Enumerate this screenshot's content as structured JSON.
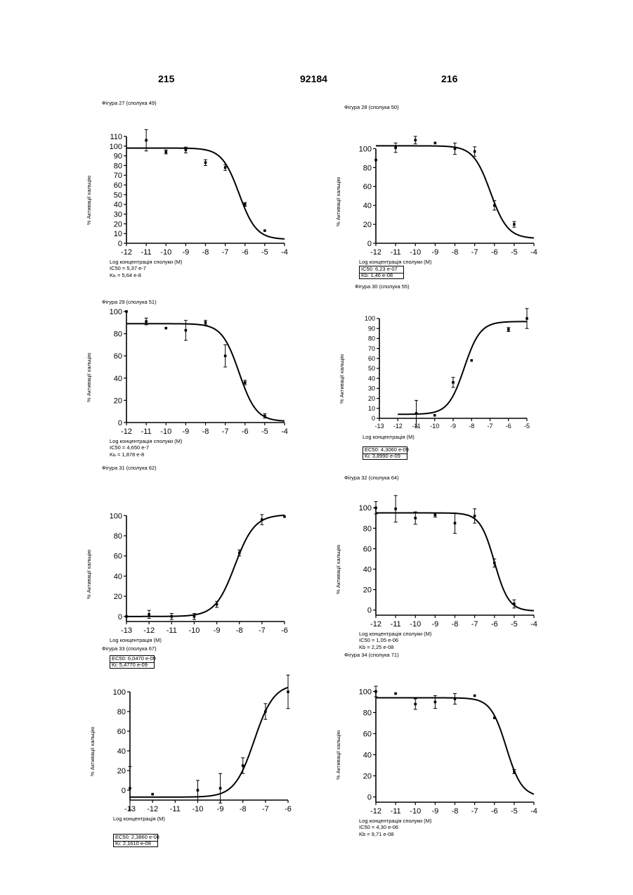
{
  "page": {
    "left_number": "215",
    "center_number": "92184",
    "right_number": "216"
  },
  "chart_data": [
    {
      "type": "scatter",
      "title": "Фігура 27 (сполука 49)",
      "xlabel": "Log концентрація сполуки (M)",
      "ylabel": "% Активації кальцію",
      "xlim": [
        -12,
        -4
      ],
      "ylim": [
        0,
        110
      ],
      "xticks": [
        -12,
        -11,
        -10,
        -9,
        -8,
        -7,
        -6,
        -5,
        -4
      ],
      "yticks": [
        0,
        10,
        20,
        30,
        40,
        50,
        60,
        70,
        80,
        90,
        100,
        110
      ],
      "tick_font": 11,
      "points": [
        {
          "x": -11,
          "y": 106,
          "err": 11
        },
        {
          "x": -10,
          "y": 94,
          "err": 2
        },
        {
          "x": -9,
          "y": 96,
          "err": 3
        },
        {
          "x": -8,
          "y": 83,
          "err": 3
        },
        {
          "x": -7,
          "y": 78,
          "err": 3
        },
        {
          "x": -6,
          "y": 40,
          "err": 2
        },
        {
          "x": -5,
          "y": 13,
          "err": 0
        }
      ],
      "curve": {
        "bottom": 4,
        "top": 98,
        "logEC50": -6.3,
        "hill": -1
      },
      "notes": [
        "IC50 = 5,37 e-7",
        "Kь = 5,64 e-8"
      ],
      "notes_boxed": false
    },
    {
      "type": "scatter",
      "title": "Фігура 28 (сполука 50)",
      "xlabel": "Log концентрація сполуки (M)",
      "ylabel": "% Активації кальцію",
      "xlim": [
        -12,
        -4
      ],
      "ylim": [
        0,
        110
      ],
      "xticks": [
        -12,
        -11,
        -10,
        -9,
        -8,
        -7,
        -6,
        -5,
        -4
      ],
      "yticks": [
        0,
        20,
        40,
        60,
        80,
        100
      ],
      "tick_font": 11,
      "points": [
        {
          "x": -12,
          "y": 88,
          "err": 0
        },
        {
          "x": -11,
          "y": 101,
          "err": 5
        },
        {
          "x": -10,
          "y": 109,
          "err": 4
        },
        {
          "x": -9,
          "y": 106,
          "err": 0
        },
        {
          "x": -8,
          "y": 100,
          "err": 6
        },
        {
          "x": -7,
          "y": 97,
          "err": 5
        },
        {
          "x": -6,
          "y": 40,
          "err": 5
        },
        {
          "x": -5,
          "y": 20,
          "err": 3
        }
      ],
      "curve": {
        "bottom": 5,
        "top": 103,
        "logEC50": -6.2,
        "hill": -1
      },
      "notes": [
        "IC50:  6,23 e-07",
        "Kb:     1,46 e-08"
      ],
      "notes_boxed": true
    },
    {
      "type": "scatter",
      "title": "Фігура 29 (сполука 51)",
      "xlabel": "Log концентрація сполуки (M)",
      "ylabel": "% Активації кальцію",
      "xlim": [
        -12,
        -4
      ],
      "ylim": [
        0,
        100
      ],
      "xticks": [
        -12,
        -11,
        -10,
        -9,
        -8,
        -7,
        -6,
        -5,
        -4
      ],
      "yticks": [
        0,
        20,
        40,
        60,
        80,
        100
      ],
      "tick_font": 11,
      "points": [
        {
          "x": -12,
          "y": 100,
          "err": 0
        },
        {
          "x": -11,
          "y": 91,
          "err": 3
        },
        {
          "x": -10,
          "y": 85,
          "err": 0
        },
        {
          "x": -9,
          "y": 83,
          "err": 9
        },
        {
          "x": -8,
          "y": 90,
          "err": 2
        },
        {
          "x": -7,
          "y": 60,
          "err": 10
        },
        {
          "x": -6,
          "y": 36,
          "err": 2
        },
        {
          "x": -5,
          "y": 6,
          "err": 2
        }
      ],
      "curve": {
        "bottom": 1,
        "top": 89,
        "logEC50": -6.3,
        "hill": -1
      },
      "notes": [
        "IC50 = 4,650 e-7",
        "Kь = 1,878 e-8"
      ],
      "notes_boxed": false
    },
    {
      "type": "scatter",
      "title": "Фігура 30 (сполука 55)",
      "xlabel": "Log концентрація (M)",
      "ylabel": "% Активації кальцію",
      "xlim": [
        -13,
        -5
      ],
      "ylim": [
        0,
        100
      ],
      "xticks": [
        -13,
        -12,
        -11,
        -10,
        -9,
        -8,
        -7,
        -6,
        -5
      ],
      "yticks": [
        0,
        10,
        20,
        30,
        40,
        50,
        60,
        70,
        80,
        90,
        100
      ],
      "tick_font": 9,
      "points": [
        {
          "x": -11,
          "y": 5,
          "err": 13
        },
        {
          "x": -10,
          "y": 3,
          "err": 0
        },
        {
          "x": -9,
          "y": 36,
          "err": 5
        },
        {
          "x": -8,
          "y": 58,
          "err": 0
        },
        {
          "x": -6,
          "y": 89,
          "err": 2
        },
        {
          "x": -5,
          "y": 100,
          "err": 10
        }
      ],
      "curve": {
        "bottom": 4,
        "top": 97,
        "logEC50": -8.4,
        "hill": 1,
        "xmin": -12
      },
      "notes": [
        "EC50: 4,3060 e-09",
        "Ki:     3,8990 e-09"
      ],
      "notes_boxed": true
    },
    {
      "type": "scatter",
      "title": "Фігура 31 (сполука 62)",
      "xlabel": "Log концентрація (M)",
      "ylabel": "% Активації кальцію",
      "xlim": [
        -13,
        -6
      ],
      "ylim": [
        -5,
        110
      ],
      "xticks": [
        -13,
        -12,
        -11,
        -10,
        -9,
        -8,
        -7,
        -6
      ],
      "yticks": [
        0,
        20,
        40,
        60,
        80,
        100
      ],
      "tick_font": 11,
      "points": [
        {
          "x": -13,
          "y": 0,
          "err": 0
        },
        {
          "x": -12,
          "y": 2,
          "err": 4
        },
        {
          "x": -11,
          "y": 0,
          "err": 3
        },
        {
          "x": -10,
          "y": 0,
          "err": 3
        },
        {
          "x": -9,
          "y": 12,
          "err": 3
        },
        {
          "x": -8,
          "y": 63,
          "err": 3
        },
        {
          "x": -7,
          "y": 96,
          "err": 5
        },
        {
          "x": -6,
          "y": 99,
          "err": 0
        }
      ],
      "curve": {
        "bottom": 0,
        "top": 101,
        "logEC50": -8.2,
        "hill": 1
      },
      "notes": [
        "EC50: 6,0470 e-09",
        "Ki:     5,4770 e-09"
      ],
      "notes_boxed": true
    },
    {
      "type": "scatter",
      "title": "Фігура 32 (сполука 64)",
      "xlabel": "Log концентрація сполуки (M)",
      "ylabel": "% Активації кальцію",
      "xlim": [
        -12,
        -4
      ],
      "ylim": [
        -5,
        105
      ],
      "xticks": [
        -12,
        -11,
        -10,
        -9,
        -8,
        -7,
        -6,
        -5,
        -4
      ],
      "yticks": [
        0,
        20,
        40,
        60,
        80,
        100
      ],
      "tick_font": 11,
      "points": [
        {
          "x": -12,
          "y": 100,
          "err": 6
        },
        {
          "x": -11,
          "y": 99,
          "err": 13
        },
        {
          "x": -10,
          "y": 90,
          "err": 6
        },
        {
          "x": -9,
          "y": 93,
          "err": 2
        },
        {
          "x": -8,
          "y": 85,
          "err": 10
        },
        {
          "x": -7,
          "y": 92,
          "err": 7
        },
        {
          "x": -6,
          "y": 46,
          "err": 4
        },
        {
          "x": -5,
          "y": 6,
          "err": 4
        }
      ],
      "curve": {
        "bottom": -1,
        "top": 95,
        "logEC50": -6.0,
        "hill": -1.2
      },
      "notes": [
        "IC50 = 1,05 e-06",
        "Kb    = 2,25 e-08"
      ],
      "notes_boxed": false
    },
    {
      "type": "scatter",
      "title": "Фігура 33 (сполука 67)",
      "xlabel": "Log концентрація (M)",
      "ylabel": "% Активації кальцію",
      "xlim": [
        -13,
        -6
      ],
      "ylim": [
        -10,
        110
      ],
      "xticks": [
        -13,
        -12,
        -11,
        -10,
        -9,
        -8,
        -7,
        -6
      ],
      "yticks": [
        0,
        20,
        40,
        60,
        80,
        100
      ],
      "tick_font": 11,
      "points": [
        {
          "x": -13,
          "y": 2,
          "err": 22
        },
        {
          "x": -12,
          "y": -4,
          "err": 0
        },
        {
          "x": -10,
          "y": 0,
          "err": 10
        },
        {
          "x": -9,
          "y": 2,
          "err": 15
        },
        {
          "x": -8,
          "y": 25,
          "err": 8
        },
        {
          "x": -7,
          "y": 80,
          "err": 8
        },
        {
          "x": -6,
          "y": 100,
          "err": 17
        }
      ],
      "curve": {
        "bottom": -7,
        "top": 108,
        "logEC50": -7.5,
        "hill": 1
      },
      "notes": [
        "EC50: 2,3860 e-08",
        "Ki:     2,1610 e-08"
      ],
      "notes_boxed": true
    },
    {
      "type": "scatter",
      "title": "Фігура 34 (сполука 71)",
      "xlabel": "Log концентрація сполуки (M)",
      "ylabel": "% Активації кальцію",
      "xlim": [
        -12,
        -4
      ],
      "ylim": [
        -5,
        105
      ],
      "xticks": [
        -12,
        -11,
        -10,
        -9,
        -8,
        -7,
        -6,
        -5,
        -4
      ],
      "yticks": [
        0,
        20,
        40,
        60,
        80,
        100
      ],
      "tick_font": 11,
      "points": [
        {
          "x": -12,
          "y": 100,
          "err": 5
        },
        {
          "x": -11,
          "y": 98,
          "err": 0
        },
        {
          "x": -10,
          "y": 88,
          "err": 5
        },
        {
          "x": -9,
          "y": 90,
          "err": 6
        },
        {
          "x": -8,
          "y": 93,
          "err": 5
        },
        {
          "x": -7,
          "y": 96,
          "err": 0
        },
        {
          "x": -6,
          "y": 75,
          "err": 0
        },
        {
          "x": -5,
          "y": 24,
          "err": 2
        }
      ],
      "curve": {
        "bottom": 0,
        "top": 94,
        "logEC50": -5.4,
        "hill": -1.1
      },
      "notes": [
        "IC50 = 4,30 e-06",
        "Kb    = 9,71 e-08"
      ],
      "notes_boxed": false
    }
  ]
}
